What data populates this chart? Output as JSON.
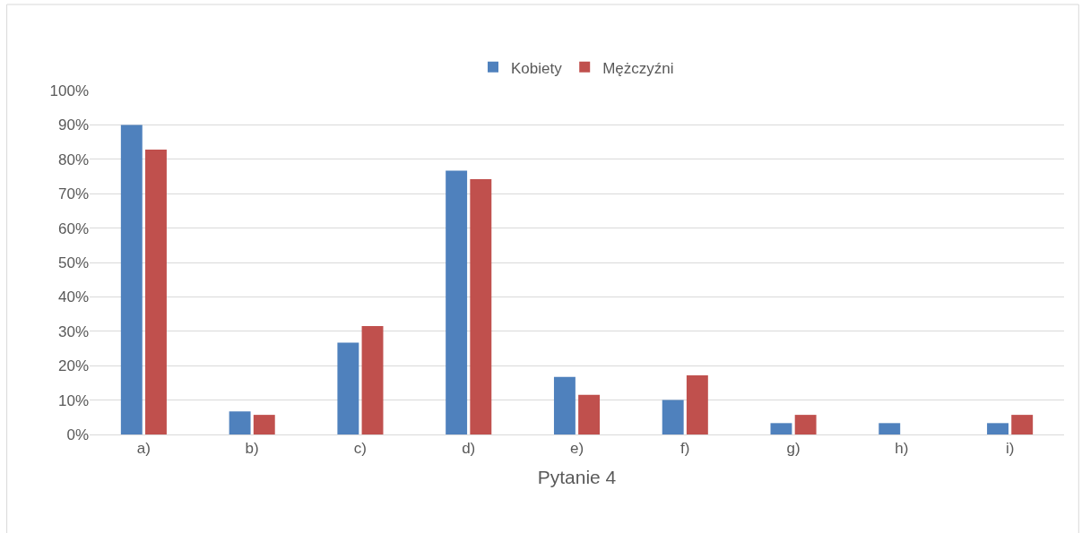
{
  "chart_data": {
    "type": "bar",
    "xlabel": "Pytanie 4",
    "categories": [
      "a)",
      "b)",
      "c)",
      "d)",
      "e)",
      "f)",
      "g)",
      "h)",
      "i)"
    ],
    "series": [
      {
        "name": "Kobiety",
        "color": "#4f81bd",
        "values": [
          90,
          6.7,
          26.7,
          76.7,
          16.7,
          10,
          3.3,
          3.3,
          3.3
        ]
      },
      {
        "name": "Mężczyźni",
        "color": "#c0504d",
        "values": [
          82.8,
          5.7,
          31.5,
          74.2,
          11.5,
          17.2,
          5.7,
          0,
          5.7
        ]
      }
    ],
    "ylim": [
      0,
      100
    ],
    "yticks": [
      {
        "value": 0,
        "label": "0%"
      },
      {
        "value": 10,
        "label": "10%"
      },
      {
        "value": 20,
        "label": "20%"
      },
      {
        "value": 30,
        "label": "30%"
      },
      {
        "value": 40,
        "label": "40%"
      },
      {
        "value": 50,
        "label": "50%"
      },
      {
        "value": 60,
        "label": "60%"
      },
      {
        "value": 70,
        "label": "70%"
      },
      {
        "value": 80,
        "label": "80%"
      },
      {
        "value": 90,
        "label": "90%"
      },
      {
        "value": 100,
        "label": "100%"
      }
    ],
    "grid": "y",
    "legend": "top"
  }
}
